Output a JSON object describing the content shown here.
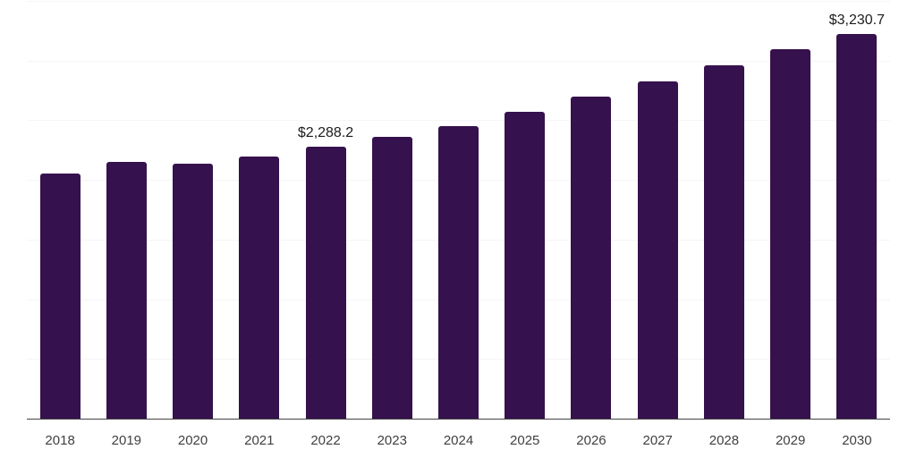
{
  "chart_data": {
    "type": "bar",
    "title": "",
    "xlabel": "",
    "ylabel": "",
    "categories": [
      "2018",
      "2019",
      "2020",
      "2021",
      "2022",
      "2023",
      "2024",
      "2025",
      "2026",
      "2027",
      "2028",
      "2029",
      "2030"
    ],
    "values": [
      2059,
      2159,
      2141,
      2206,
      2288.2,
      2372,
      2462,
      2580,
      2706,
      2830,
      2968,
      3100,
      3230.7
    ],
    "data_labels": {
      "2022": "$2,288.2",
      "2030": "$3,230.7"
    },
    "ylim": [
      0,
      3500
    ],
    "gridline_step": 500,
    "grid": true,
    "legend": false,
    "colors": {
      "bar": "#35114d",
      "gridline": "#f5f5f5",
      "axis": "#444444",
      "tick_text": "#404040",
      "label_text": "#1c1c1c",
      "background": "#ffffff"
    }
  }
}
